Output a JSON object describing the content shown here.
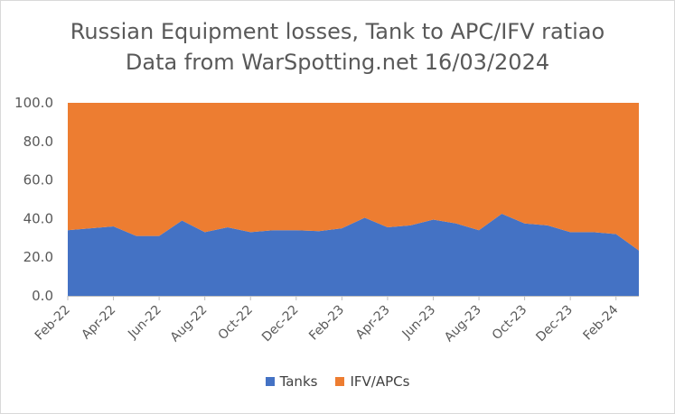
{
  "chart_data": {
    "type": "area",
    "stacked": true,
    "title_line1": "Russian Equipment losses, Tank to APC/IFV ratiao",
    "title_line2": "Data from WarSpotting.net 16/03/2024",
    "xlabel": "",
    "ylabel": "",
    "ylim": [
      0,
      100
    ],
    "y_ticks": [
      "0.0",
      "20.0",
      "40.0",
      "60.0",
      "80.0",
      "100.0"
    ],
    "y_tick_values": [
      0,
      20,
      40,
      60,
      80,
      100
    ],
    "x_tick_labels": [
      "Feb-22",
      "Apr-22",
      "Jun-22",
      "Aug-22",
      "Oct-22",
      "Dec-22",
      "Feb-23",
      "Apr-23",
      "Jun-23",
      "Aug-23",
      "Oct-23",
      "Dec-23",
      "Feb-24"
    ],
    "categories": [
      "Feb-22",
      "Mar-22",
      "Apr-22",
      "May-22",
      "Jun-22",
      "Jul-22",
      "Aug-22",
      "Sep-22",
      "Oct-22",
      "Nov-22",
      "Dec-22",
      "Jan-23",
      "Feb-23",
      "Mar-23",
      "Apr-23",
      "May-23",
      "Jun-23",
      "Jul-23",
      "Aug-23",
      "Sep-23",
      "Oct-23",
      "Nov-23",
      "Dec-23",
      "Jan-24",
      "Feb-24",
      "Mar-24"
    ],
    "series": [
      {
        "name": "Tanks",
        "color": "#4472c4",
        "values": [
          34.0,
          35.0,
          36.0,
          31.0,
          31.0,
          39.0,
          33.0,
          35.5,
          33.0,
          34.0,
          34.0,
          33.5,
          35.0,
          40.5,
          35.5,
          36.5,
          39.5,
          37.5,
          34.0,
          42.5,
          37.5,
          36.5,
          33.0,
          33.0,
          32.0,
          23.5
        ]
      },
      {
        "name": "IFV/APCs",
        "color": "#ed7d31",
        "values": [
          66.0,
          65.0,
          64.0,
          69.0,
          69.0,
          61.0,
          67.0,
          64.5,
          67.0,
          66.0,
          66.0,
          66.5,
          65.0,
          59.5,
          64.5,
          63.5,
          60.5,
          62.5,
          66.0,
          57.5,
          62.5,
          63.5,
          67.0,
          67.0,
          68.0,
          76.5
        ]
      }
    ],
    "legend": "bottom",
    "grid": false
  }
}
